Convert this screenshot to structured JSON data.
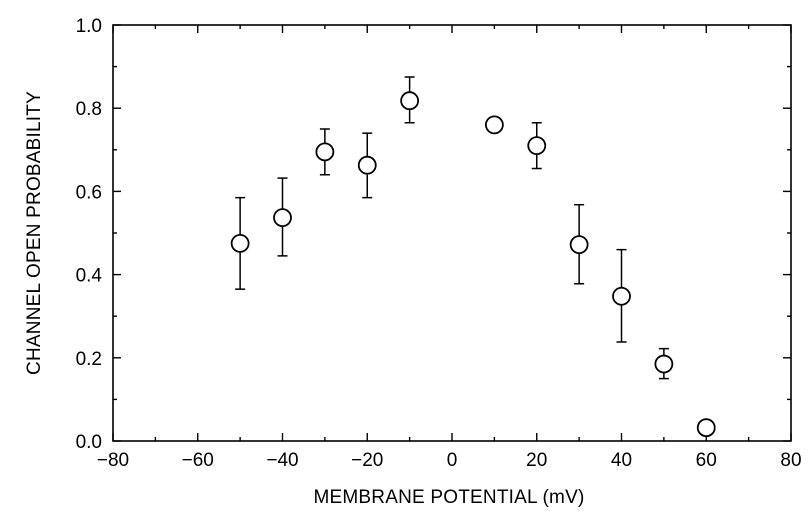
{
  "chart_data": {
    "type": "scatter",
    "title": "",
    "xlabel": "MEMBRANE POTENTIAL (mV)",
    "ylabel": "CHANNEL OPEN PROBABILITY",
    "xlim": [
      -80,
      80
    ],
    "ylim": [
      0.0,
      1.0
    ],
    "grid": false,
    "legend": "none",
    "x_ticks": [
      -80,
      -60,
      -40,
      -20,
      0,
      20,
      40,
      60,
      80
    ],
    "x_tick_labels": [
      "−80",
      "−60",
      "−40",
      "−20",
      "0",
      "20",
      "40",
      "60",
      "80"
    ],
    "y_ticks": [
      0.0,
      0.2,
      0.4,
      0.6,
      0.8,
      1.0
    ],
    "y_tick_labels": [
      "0.0",
      "0.2",
      "0.4",
      "0.6",
      "0.8",
      "1.0"
    ],
    "series": [
      {
        "marker": "open-circle",
        "points": [
          {
            "x": -50,
            "y": 0.475,
            "err_low": 0.365,
            "err_high": 0.585
          },
          {
            "x": -40,
            "y": 0.537,
            "err_low": 0.445,
            "err_high": 0.632
          },
          {
            "x": -30,
            "y": 0.695,
            "err_low": 0.64,
            "err_high": 0.75
          },
          {
            "x": -20,
            "y": 0.663,
            "err_low": 0.585,
            "err_high": 0.74
          },
          {
            "x": -10,
            "y": 0.818,
            "err_low": 0.765,
            "err_high": 0.875
          },
          {
            "x": 10,
            "y": 0.76,
            "err_low": null,
            "err_high": null
          },
          {
            "x": 20,
            "y": 0.71,
            "err_low": 0.655,
            "err_high": 0.765
          },
          {
            "x": 30,
            "y": 0.472,
            "err_low": 0.378,
            "err_high": 0.568
          },
          {
            "x": 40,
            "y": 0.348,
            "err_low": 0.238,
            "err_high": 0.46
          },
          {
            "x": 50,
            "y": 0.185,
            "err_low": 0.15,
            "err_high": 0.222
          },
          {
            "x": 60,
            "y": 0.032,
            "err_low": null,
            "err_high": null
          }
        ]
      }
    ]
  }
}
